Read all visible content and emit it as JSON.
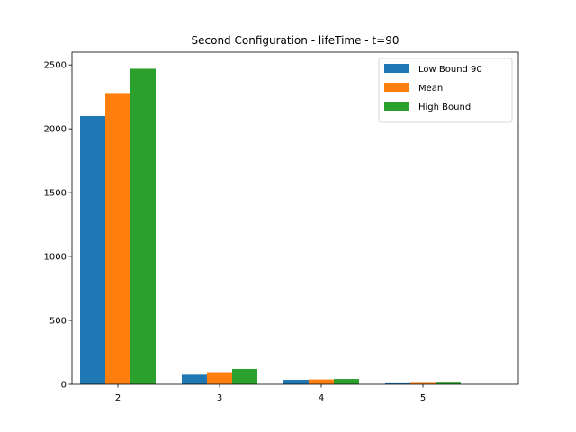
{
  "chart_data": {
    "type": "bar",
    "title": "Second Configuration - lifeTime - t=90",
    "xlabel": "",
    "ylabel": "",
    "categories": [
      "2",
      "3",
      "4",
      "5"
    ],
    "series": [
      {
        "name": "Low Bound 90",
        "color": "#1f77b4",
        "values": [
          2100,
          75,
          35,
          15
        ]
      },
      {
        "name": "Mean",
        "color": "#ff7f0e",
        "values": [
          2280,
          95,
          38,
          18
        ]
      },
      {
        "name": "High Bound",
        "color": "#2ca02c",
        "values": [
          2470,
          120,
          42,
          20
        ]
      }
    ],
    "ylim": [
      0,
      2600
    ],
    "yticks": [
      0,
      500,
      1000,
      1500,
      2000,
      2500
    ],
    "grid": false,
    "legend_position": "upper right"
  }
}
